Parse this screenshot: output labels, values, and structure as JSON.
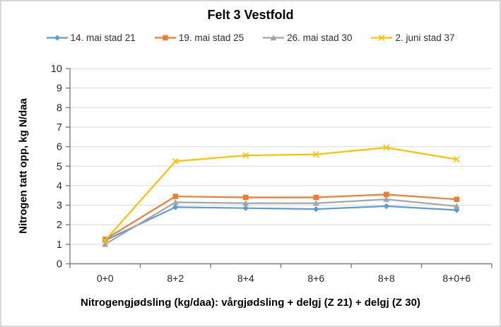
{
  "window": {
    "title": "Felt 3 Vestfold"
  },
  "chart_data": {
    "type": "line",
    "title": "Felt 3 Vestfold",
    "xlabel": "Nitrogengjødsling (kg/daa): vårgjødsling + delgj (Z 21) + delgj (Z 30)",
    "ylabel": "Nitrogen tatt opp, kg N/daa",
    "categories": [
      "0+0",
      "8+2",
      "8+4",
      "8+6",
      "8+8",
      "8+0+6"
    ],
    "series": [
      {
        "name": "14. mai stad 21",
        "color": "#5B9BD5",
        "marker": "diamond",
        "values": [
          1.2,
          2.9,
          2.85,
          2.8,
          2.95,
          2.75
        ]
      },
      {
        "name": "19. mai stad 25",
        "color": "#ED7D31",
        "marker": "square",
        "values": [
          1.25,
          3.45,
          3.4,
          3.4,
          3.55,
          3.3
        ]
      },
      {
        "name": "26. mai stad 30",
        "color": "#A5A5A5",
        "marker": "triangle",
        "values": [
          1.0,
          3.15,
          3.1,
          3.1,
          3.3,
          2.95
        ]
      },
      {
        "name": "2. juni stad 37",
        "color": "#FFC000",
        "marker": "x",
        "values": [
          1.2,
          5.25,
          5.55,
          5.6,
          5.95,
          5.35
        ]
      }
    ],
    "ylim": [
      0,
      10
    ],
    "ytick_step": 1,
    "grid": true,
    "legend_position": "top",
    "colors": {
      "gridline": "#D9D9D9",
      "axis": "#7F7F7F",
      "tick_text": "#262626"
    }
  }
}
